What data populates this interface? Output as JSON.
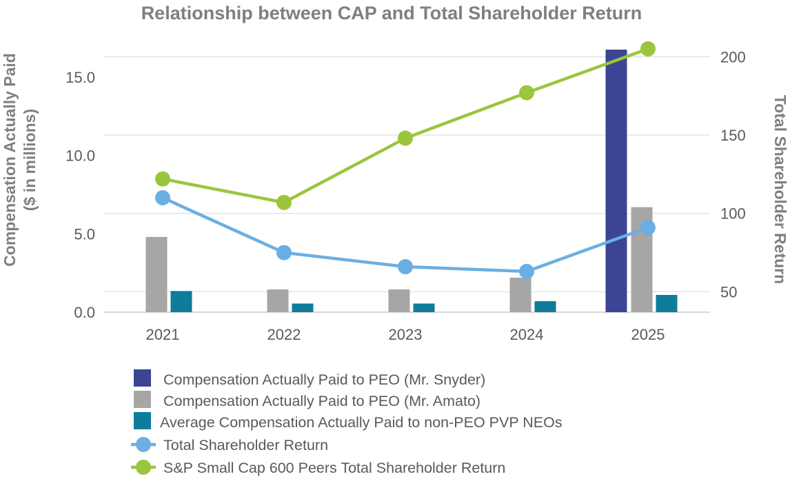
{
  "chart_data": {
    "type": "bar",
    "title": "Relationship between CAP and Total Shareholder Return",
    "ylabel_lines": [
      "Compensation Actually Paid",
      "($ in millions)"
    ],
    "y2label": "Total Shareholder Return",
    "categories": [
      "2021",
      "2022",
      "2023",
      "2024",
      "2025"
    ],
    "ylim": [
      0,
      17.5
    ],
    "yticks": [
      0,
      5,
      10,
      15
    ],
    "ytick_labels": [
      "0.0",
      "5.0",
      "10.0",
      "15.0"
    ],
    "y2lim": [
      37,
      212
    ],
    "y2ticks": [
      50,
      100,
      150,
      200
    ],
    "y2tick_labels": [
      "50",
      "100",
      "150",
      "200"
    ],
    "bar_series": [
      {
        "name": "Compensation Actually Paid to PEO (Mr. Snyder)",
        "color": "#3b4593",
        "values": [
          null,
          null,
          null,
          null,
          16.75
        ]
      },
      {
        "name": "Compensation Actually Paid to PEO (Mr. Amato)",
        "color": "#a6a6a6",
        "values": [
          4.8,
          1.45,
          1.45,
          2.2,
          6.7
        ]
      },
      {
        "name": "Average Compensation Actually Paid to non-PEO PVP NEOs",
        "color": "#0e7c9a",
        "values": [
          1.35,
          0.55,
          0.55,
          0.7,
          1.1
        ]
      }
    ],
    "line_series": [
      {
        "name": "Total Shareholder Return",
        "color": "#6aafe3",
        "axis": "right",
        "values": [
          110,
          75,
          66,
          63,
          91
        ]
      },
      {
        "name": "S&P Small Cap 600 Peers Total Shareholder Return",
        "color": "#9bc53d",
        "axis": "right",
        "values": [
          122,
          107,
          148,
          177,
          205
        ]
      }
    ]
  }
}
